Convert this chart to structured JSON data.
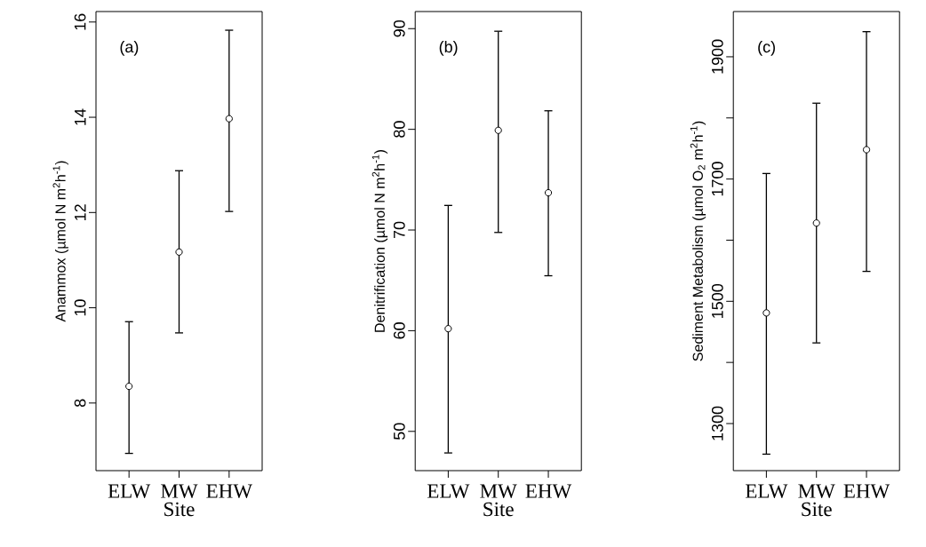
{
  "chart_data": [
    {
      "type": "scatter",
      "categories": [
        "ELW",
        "MW",
        "EHW"
      ],
      "xlabel": "Site",
      "ylabel": "Anammox (µmol N m$^{2}$h$^{-1}$)",
      "ylim": [
        6.58,
        16.22
      ],
      "yticks": [
        8,
        10,
        12,
        14,
        16
      ],
      "marker": "circle",
      "annotations": [
        "(a)"
      ],
      "series": [
        {
          "color": "#000000",
          "values": [
            8.35,
            11.17,
            13.97
          ],
          "errors": [
            [
              6.93,
              9.72
            ],
            [
              9.46,
              12.89
            ],
            [
              12.01,
              15.84
            ]
          ]
        }
      ]
    },
    {
      "type": "scatter",
      "categories": [
        "ELW",
        "MW",
        "EHW"
      ],
      "xlabel": "Site",
      "ylabel": "Denitrification (µmol N m$^{2}$h$^{-1}$)",
      "ylim": [
        46.1,
        91.7
      ],
      "yticks": [
        50,
        60,
        70,
        80,
        90
      ],
      "marker": "circle",
      "annotations": [
        "(b)"
      ],
      "series": [
        {
          "color": "#000000",
          "values": [
            60.2,
            79.9,
            73.7
          ],
          "errors": [
            [
              47.8,
              72.5
            ],
            [
              69.7,
              89.8
            ],
            [
              65.4,
              81.9
            ]
          ]
        }
      ]
    },
    {
      "type": "scatter",
      "categories": [
        "ELW",
        "MW",
        "EHW"
      ],
      "xlabel": "Site",
      "ylabel": "Sediment Metabolism (µmol O$_{2}$ m$^{2}$h$^{-1}$)",
      "ylim": [
        1223,
        1974
      ],
      "yticks": [
        1300,
        {
          "value": 1400,
          "label": null
        },
        1500,
        {
          "value": 1600,
          "label": null
        },
        1700,
        {
          "value": 1800,
          "label": null
        },
        1900
      ],
      "marker": "circle",
      "annotations": [
        "(c)"
      ],
      "series": [
        {
          "color": "#000000",
          "values": [
            1481,
            1628,
            1748
          ],
          "errors": [
            [
              1249,
              1710
            ],
            [
              1431,
              1825
            ],
            [
              1548,
              1942
            ]
          ]
        }
      ]
    }
  ]
}
